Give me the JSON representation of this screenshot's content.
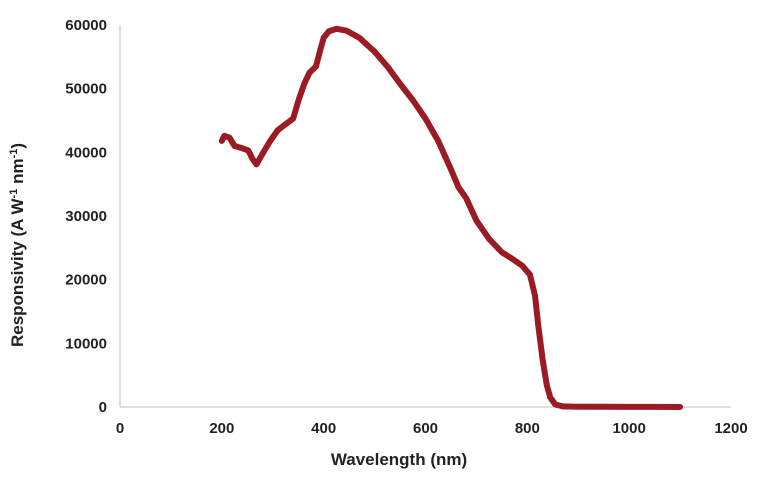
{
  "chart_data": {
    "type": "line",
    "title": "",
    "xlabel": "Wavelength (nm)",
    "ylabel": {
      "main": "Responsivity (A W",
      "sup1": "-1",
      "mid": " nm",
      "sup2": "-1",
      "end": ")"
    },
    "xlim": [
      0,
      1200
    ],
    "ylim": [
      0,
      60000
    ],
    "xticks": [
      0,
      200,
      400,
      600,
      800,
      1000,
      1200
    ],
    "yticks": [
      0,
      10000,
      20000,
      30000,
      40000,
      50000,
      60000
    ],
    "grid": false,
    "legend": "none",
    "series": [
      {
        "color": "#9b1b24",
        "points": [
          [
            200,
            41800
          ],
          [
            205,
            42600
          ],
          [
            215,
            42300
          ],
          [
            225,
            41000
          ],
          [
            238,
            40700
          ],
          [
            252,
            40300
          ],
          [
            260,
            39000
          ],
          [
            268,
            38100
          ],
          [
            280,
            39800
          ],
          [
            295,
            41800
          ],
          [
            310,
            43500
          ],
          [
            325,
            44400
          ],
          [
            340,
            45300
          ],
          [
            352,
            48500
          ],
          [
            362,
            50800
          ],
          [
            372,
            52500
          ],
          [
            385,
            53500
          ],
          [
            393,
            56000
          ],
          [
            400,
            58000
          ],
          [
            410,
            59000
          ],
          [
            425,
            59400
          ],
          [
            445,
            59100
          ],
          [
            470,
            58000
          ],
          [
            500,
            55800
          ],
          [
            525,
            53500
          ],
          [
            550,
            50800
          ],
          [
            575,
            48200
          ],
          [
            600,
            45300
          ],
          [
            625,
            41800
          ],
          [
            650,
            37300
          ],
          [
            665,
            34500
          ],
          [
            680,
            32800
          ],
          [
            700,
            29300
          ],
          [
            725,
            26400
          ],
          [
            750,
            24300
          ],
          [
            770,
            23300
          ],
          [
            790,
            22200
          ],
          [
            805,
            20800
          ],
          [
            815,
            17500
          ],
          [
            822,
            12500
          ],
          [
            830,
            7500
          ],
          [
            838,
            3500
          ],
          [
            845,
            1500
          ],
          [
            855,
            400
          ],
          [
            870,
            100
          ],
          [
            900,
            50
          ],
          [
            950,
            30
          ],
          [
            1000,
            20
          ],
          [
            1050,
            10
          ],
          [
            1100,
            0
          ]
        ]
      }
    ]
  }
}
